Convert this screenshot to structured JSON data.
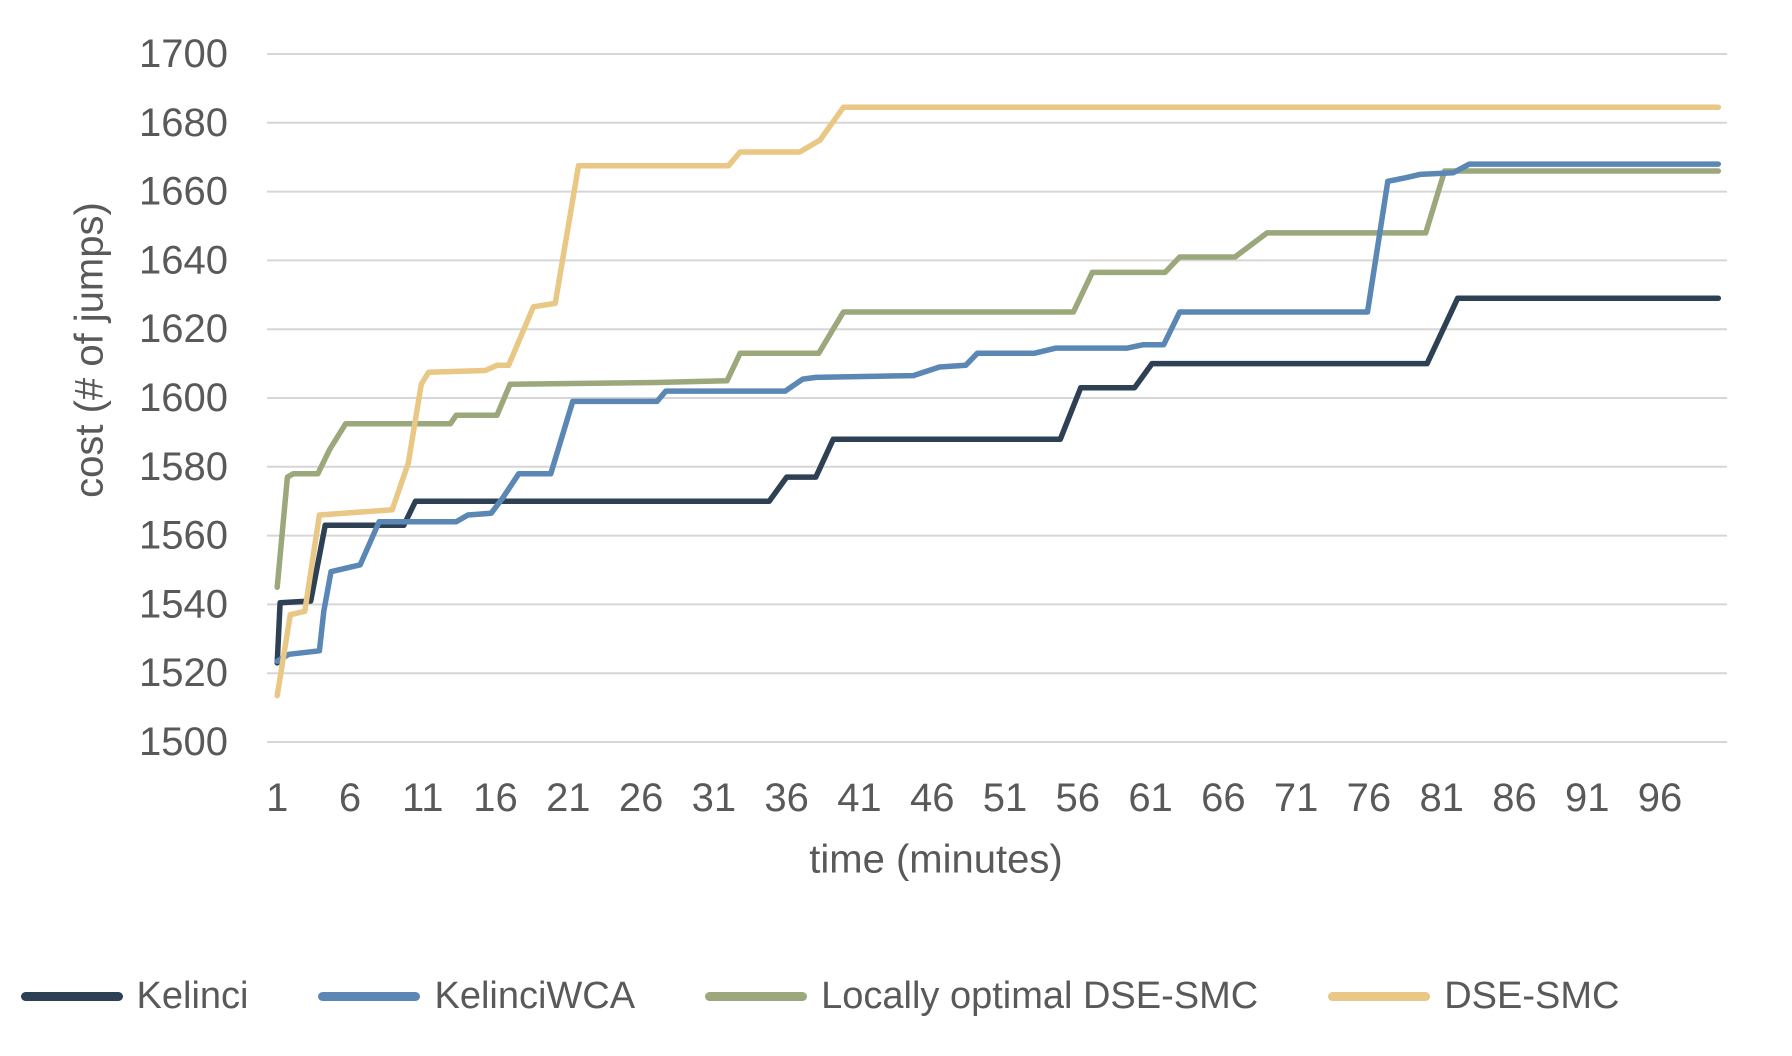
{
  "colors": {
    "background": "#FFFFFF",
    "grid": "#D6D6D6",
    "text": "#595959",
    "kelinci": "#2E4053",
    "kelinci_wca": "#5B87B5",
    "locally_optimal_dse_smc": "#9AA87C",
    "dse_smc": "#E9C784"
  },
  "chart_data": {
    "type": "line",
    "title": "",
    "xlabel": "time (minutes)",
    "ylabel": "cost (# of jumps)",
    "grid": "horizontal",
    "legend_position": "bottom",
    "xlim": [
      0.3,
      100.6
    ],
    "ylim": [
      1500,
      1700
    ],
    "x_ticks": [
      1,
      6,
      11,
      16,
      21,
      26,
      31,
      36,
      41,
      46,
      51,
      56,
      61,
      66,
      71,
      76,
      81,
      86,
      91,
      96
    ],
    "y_ticks": [
      1500,
      1520,
      1540,
      1560,
      1580,
      1600,
      1620,
      1640,
      1660,
      1680,
      1700
    ],
    "series": [
      {
        "name": "Kelinci",
        "color": "#2E4053",
        "points": [
          [
            1,
            1523
          ],
          [
            1.2,
            1540.5
          ],
          [
            3.3,
            1541
          ],
          [
            4.3,
            1563
          ],
          [
            9.7,
            1563
          ],
          [
            10.5,
            1570
          ],
          [
            34.8,
            1570
          ],
          [
            36,
            1577
          ],
          [
            38,
            1577
          ],
          [
            39.2,
            1588
          ],
          [
            54.8,
            1588
          ],
          [
            56.2,
            1603
          ],
          [
            59.9,
            1603
          ],
          [
            61.1,
            1610
          ],
          [
            80,
            1610
          ],
          [
            82.1,
            1629
          ],
          [
            100,
            1629
          ]
        ]
      },
      {
        "name": "KelinciWCA",
        "color": "#5B87B5",
        "points": [
          [
            1,
            1523.5
          ],
          [
            1.8,
            1525.5
          ],
          [
            3.9,
            1526.5
          ],
          [
            4.2,
            1538
          ],
          [
            4.7,
            1549.5
          ],
          [
            6.7,
            1551.5
          ],
          [
            8,
            1564
          ],
          [
            13.3,
            1564
          ],
          [
            14.1,
            1566
          ],
          [
            15.7,
            1566.5
          ],
          [
            16.5,
            1571
          ],
          [
            17.6,
            1578
          ],
          [
            19.8,
            1578
          ],
          [
            21.3,
            1599
          ],
          [
            27.1,
            1599
          ],
          [
            27.7,
            1602
          ],
          [
            35.9,
            1602
          ],
          [
            37.1,
            1605.5
          ],
          [
            38,
            1606
          ],
          [
            44.7,
            1606.5
          ],
          [
            46.5,
            1609
          ],
          [
            48.3,
            1609.5
          ],
          [
            49.1,
            1613
          ],
          [
            53,
            1613
          ],
          [
            54.5,
            1614.5
          ],
          [
            59.4,
            1614.5
          ],
          [
            60.5,
            1615.5
          ],
          [
            61.9,
            1615.5
          ],
          [
            63,
            1625
          ],
          [
            75.9,
            1625
          ],
          [
            77.3,
            1663
          ],
          [
            78.5,
            1664
          ],
          [
            79.5,
            1665
          ],
          [
            81.8,
            1665.5
          ],
          [
            82.9,
            1668
          ],
          [
            100,
            1668
          ]
        ]
      },
      {
        "name": "Locally optimal DSE-SMC",
        "color": "#9AA87C",
        "points": [
          [
            1,
            1545
          ],
          [
            1.7,
            1577
          ],
          [
            2.1,
            1578
          ],
          [
            3.8,
            1578
          ],
          [
            4.6,
            1585
          ],
          [
            5.7,
            1592.5
          ],
          [
            12.9,
            1592.5
          ],
          [
            13.3,
            1595
          ],
          [
            16.1,
            1595
          ],
          [
            17,
            1604
          ],
          [
            27,
            1604.5
          ],
          [
            31.9,
            1605
          ],
          [
            32.8,
            1613
          ],
          [
            38.2,
            1613
          ],
          [
            39.9,
            1625
          ],
          [
            55.7,
            1625
          ],
          [
            57,
            1636.5
          ],
          [
            62,
            1636.5
          ],
          [
            63,
            1641
          ],
          [
            66.8,
            1641
          ],
          [
            69,
            1648
          ],
          [
            79.9,
            1648
          ],
          [
            81.2,
            1666
          ],
          [
            100,
            1666
          ]
        ]
      },
      {
        "name": "DSE-SMC",
        "color": "#E9C784",
        "points": [
          [
            1,
            1513.5
          ],
          [
            1.9,
            1537
          ],
          [
            2.9,
            1538
          ],
          [
            3.9,
            1566
          ],
          [
            8.9,
            1567.5
          ],
          [
            10,
            1581
          ],
          [
            10.9,
            1604
          ],
          [
            11.4,
            1607.5
          ],
          [
            15.3,
            1608
          ],
          [
            16.1,
            1609.5
          ],
          [
            16.9,
            1609.5
          ],
          [
            18.6,
            1626.5
          ],
          [
            20.1,
            1627.5
          ],
          [
            21.7,
            1667.5
          ],
          [
            32,
            1667.5
          ],
          [
            32.8,
            1671.5
          ],
          [
            36.9,
            1671.5
          ],
          [
            38.3,
            1675
          ],
          [
            39.9,
            1684.5
          ],
          [
            100,
            1684.5
          ]
        ]
      }
    ]
  }
}
